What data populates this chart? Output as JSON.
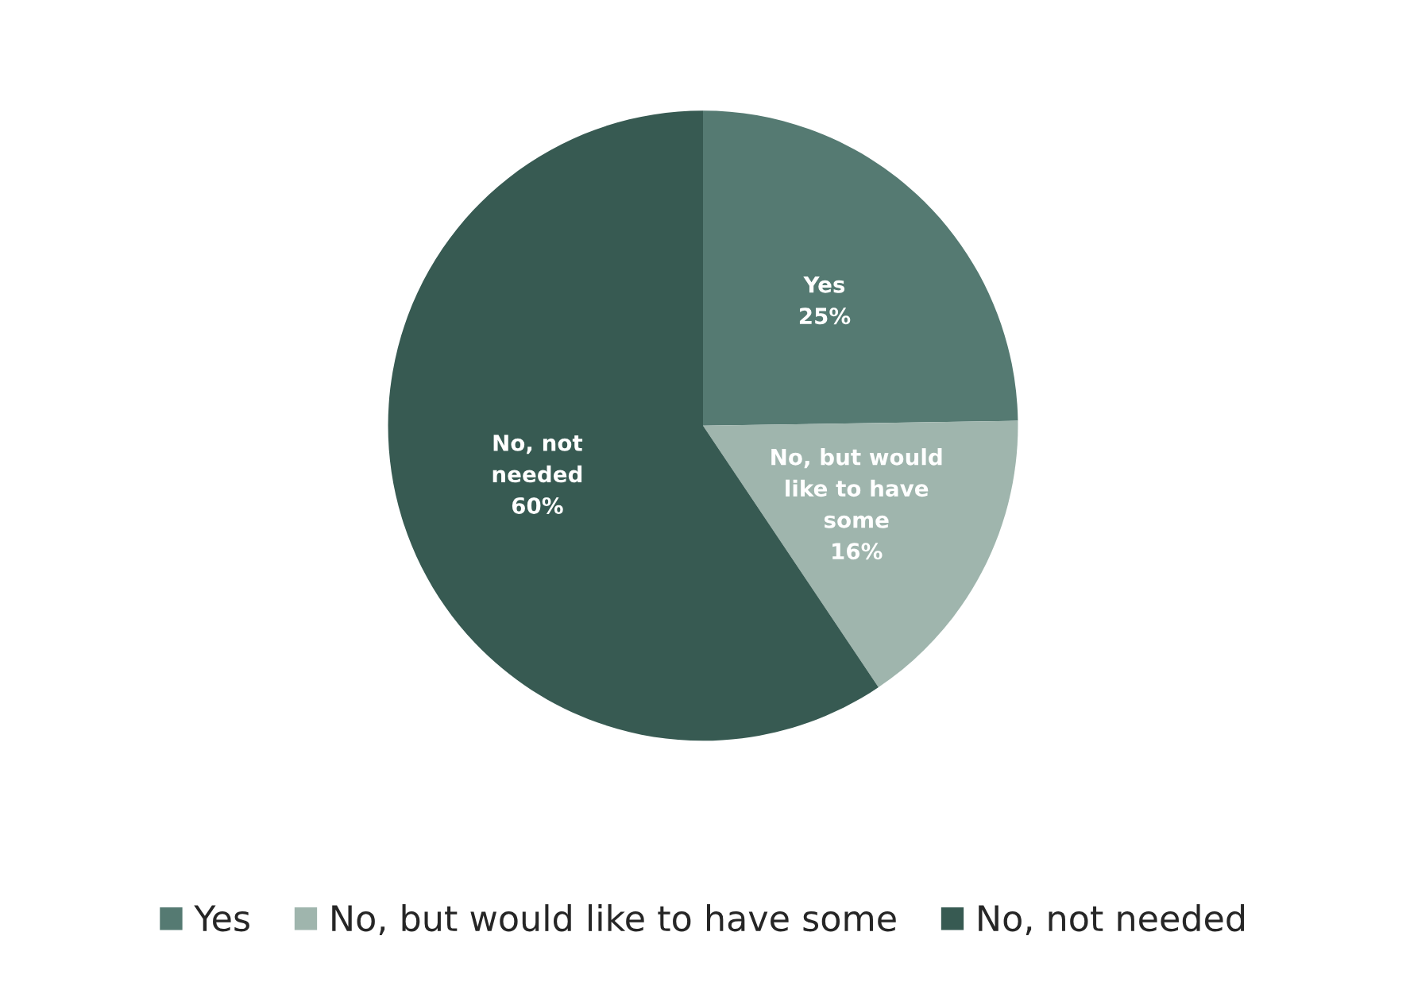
{
  "chart_data": {
    "type": "pie",
    "categories": [
      "Yes",
      "No, but would like to have some",
      "No, not needed"
    ],
    "values": [
      25,
      16,
      60
    ],
    "value_labels": [
      "25%",
      "16%",
      "60%"
    ],
    "colors": [
      "#557a72",
      "#9fb5ad",
      "#375a52"
    ],
    "legend": "bottom"
  }
}
